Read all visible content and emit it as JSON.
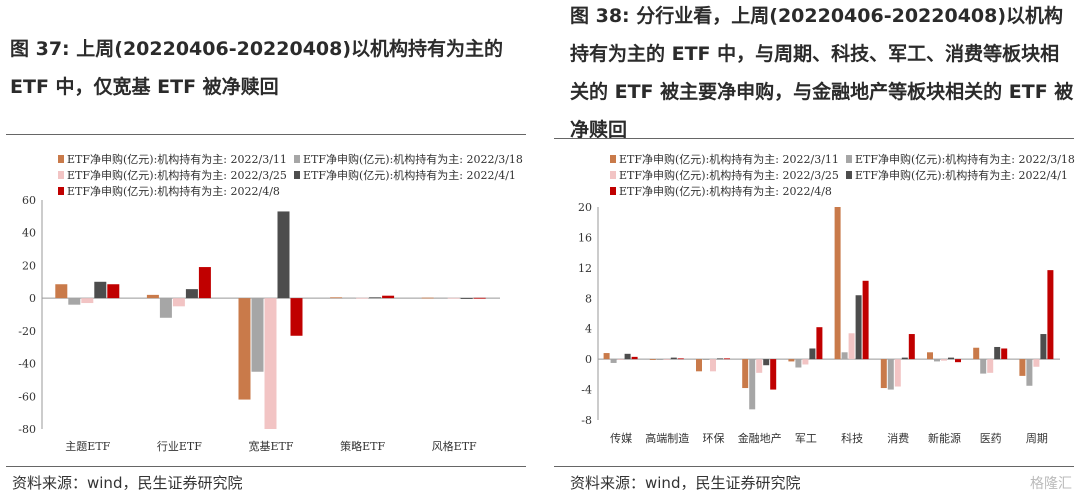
{
  "colors": [
    "#C97A4A",
    "#A6A6A6",
    "#F2C4C4",
    "#4D4D4D",
    "#C00000"
  ],
  "left": {
    "title": "图 37: 上周(20220406-20220408)以机构持有为主的 ETF 中，仅宽基 ETF 被净赎回",
    "source": "资料来源：wind，民生证券研究院"
  },
  "right": {
    "title": "图 38: 分行业看，上周(20220406-20220408)以机构持有为主的 ETF 中，与周期、科技、军工、消费等板块相关的 ETF 被主要净申购，与金融地产等板块相关的 ETF 被净赎回",
    "source": "资料来源：wind，民生证券研究院"
  },
  "watermark": "格隆汇",
  "chart_data": [
    {
      "type": "bar",
      "categories": [
        "主题ETF",
        "行业ETF",
        "宽基ETF",
        "策略ETF",
        "风格ETF"
      ],
      "ylim": [
        -80,
        60
      ],
      "yticks": [
        "60",
        "40",
        "20",
        "0",
        "-20",
        "-40",
        "-60",
        "-80"
      ],
      "series": [
        {
          "name": "ETF净申购(亿元):机构持有为主: 2022/3/11",
          "values": [
            8.5,
            2,
            -62,
            0.5,
            0.3
          ]
        },
        {
          "name": "ETF净申购(亿元):机构持有为主: 2022/3/18",
          "values": [
            -4,
            -12,
            -45,
            0.3,
            0.2
          ]
        },
        {
          "name": "ETF净申购(亿元):机构持有为主: 2022/3/25",
          "values": [
            -3,
            -5,
            -80,
            0.2,
            0.2
          ]
        },
        {
          "name": "ETF净申购(亿元):机构持有为主: 2022/4/1",
          "values": [
            10,
            5.5,
            53,
            0.5,
            -0.5
          ]
        },
        {
          "name": "ETF净申购(亿元):机构持有为主: 2022/4/8",
          "values": [
            8.5,
            19,
            -23,
            1.5,
            0.2
          ]
        }
      ]
    },
    {
      "type": "bar",
      "categories": [
        "传媒",
        "高端制造",
        "环保",
        "金融地产",
        "军工",
        "科技",
        "消费",
        "新能源",
        "医药",
        "周期"
      ],
      "ylim": [
        -8,
        20
      ],
      "yticks": [
        "20",
        "16",
        "12",
        "8",
        "4",
        "0",
        "-4",
        "-8"
      ],
      "series": [
        {
          "name": "ETF净申购(亿元):机构持有为主: 2022/3/11",
          "values": [
            0.8,
            0,
            -1.6,
            -3.8,
            -0.3,
            20,
            -3.8,
            0.9,
            1.5,
            -2.2
          ]
        },
        {
          "name": "ETF净申购(亿元):机构持有为主: 2022/3/18",
          "values": [
            -0.5,
            0,
            0,
            -6.6,
            -1.1,
            0.9,
            -4.0,
            -0.3,
            -1.9,
            -3.5
          ]
        },
        {
          "name": "ETF净申购(亿元):机构持有为主: 2022/3/25",
          "values": [
            0,
            0,
            -1.6,
            -1.8,
            -0.7,
            3.4,
            -3.6,
            -0.2,
            -1.8,
            -1.0
          ]
        },
        {
          "name": "ETF净申购(亿元):机构持有为主: 2022/4/1",
          "values": [
            0.7,
            0.2,
            0.1,
            -0.8,
            1.4,
            8.4,
            0.2,
            0.2,
            1.6,
            3.3
          ]
        },
        {
          "name": "ETF净申购(亿元):机构持有为主: 2022/4/8",
          "values": [
            0.3,
            0.1,
            0.1,
            -4.0,
            4.2,
            10.3,
            3.3,
            -0.4,
            1.4,
            11.7
          ]
        }
      ]
    }
  ]
}
